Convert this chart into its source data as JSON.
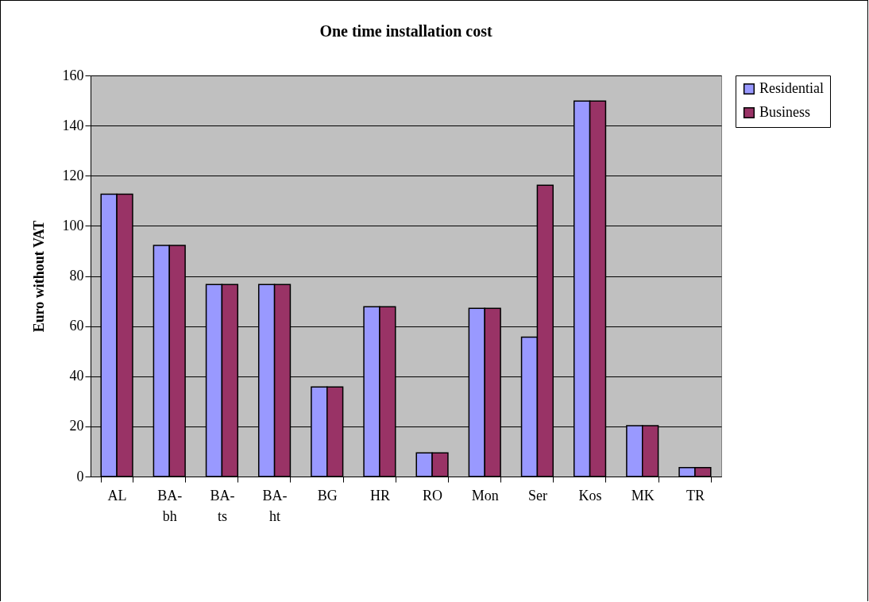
{
  "chart_data": {
    "type": "bar",
    "title": "One time installation cost",
    "ylabel": "Euro without VAT",
    "categories": [
      "AL",
      "BA-bh",
      "BA-ts",
      "BA-ht",
      "BG",
      "HR",
      "RO",
      "Mon",
      "Ser",
      "Kos",
      "MK",
      "TR"
    ],
    "series": [
      {
        "name": "Residential",
        "color": "#9999ff",
        "values": [
          112.6,
          92.2,
          76.6,
          76.6,
          35.7,
          67.7,
          9.4,
          67.1,
          55.6,
          149.8,
          20.3,
          3.6
        ]
      },
      {
        "name": "Business",
        "color": "#993366",
        "values": [
          112.6,
          92.2,
          76.6,
          76.6,
          35.7,
          67.7,
          9.4,
          67.1,
          116.2,
          149.8,
          20.3,
          3.6
        ]
      }
    ],
    "ylim": [
      0,
      160
    ],
    "yticks": [
      0,
      20,
      40,
      60,
      80,
      100,
      120,
      140,
      160
    ],
    "grid": "y",
    "legend": "right"
  }
}
